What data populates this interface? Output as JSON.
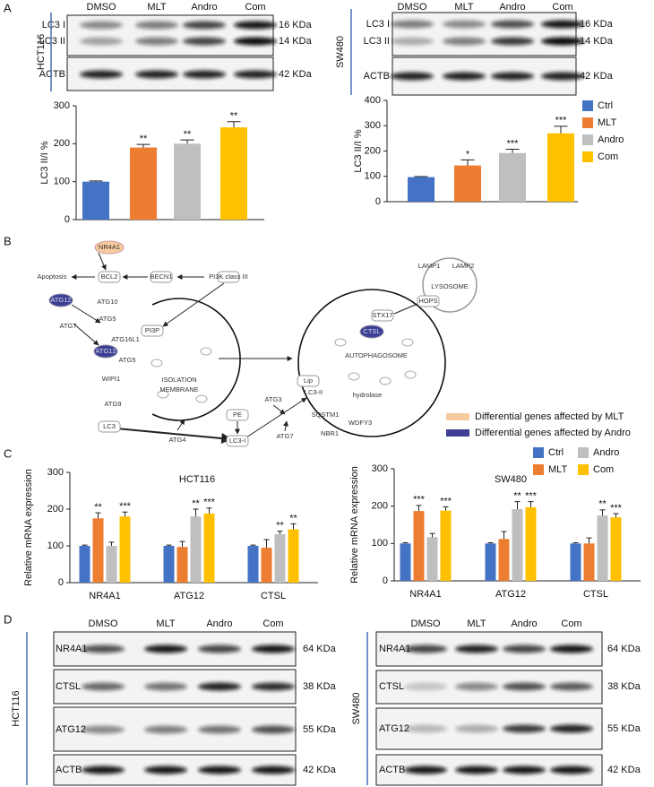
{
  "panels": [
    "A",
    "B",
    "C",
    "D"
  ],
  "blots": [
    {
      "cell_line": "HCT116",
      "lanes": [
        "DMSO",
        "MLT",
        "Andro",
        "Com"
      ],
      "bands": [
        {
          "name": "LC3 I",
          "size": "16 KDa"
        },
        {
          "name": "LC3 II",
          "size": "14 KDa"
        },
        {
          "name": "ACTB",
          "size": "42 KDa"
        }
      ]
    },
    {
      "cell_line": "SW480",
      "lanes": [
        "DMSO",
        "MLT",
        "Andro",
        "Com"
      ],
      "bands": [
        {
          "name": "LC3 I",
          "size": "16 KDa"
        },
        {
          "name": "LC3 II",
          "size": "14 KDa"
        },
        {
          "name": "ACTB",
          "size": "42 KDa"
        }
      ]
    },
    {
      "cell_line": "HCT116",
      "lanes": [
        "DMSO",
        "MLT",
        "Andro",
        "Com"
      ],
      "bands": [
        {
          "name": "NR4A1",
          "size": "64 KDa"
        },
        {
          "name": "CTSL",
          "size": "38 KDa"
        },
        {
          "name": "ATG12",
          "size": "55 KDa"
        },
        {
          "name": "ACTB",
          "size": "42 KDa"
        }
      ]
    },
    {
      "cell_line": "SW480",
      "lanes": [
        "DMSO",
        "MLT",
        "Andro",
        "Com"
      ],
      "bands": [
        {
          "name": "NR4A1",
          "size": "64 KDa"
        },
        {
          "name": "CTSL",
          "size": "38 KDa"
        },
        {
          "name": "ATG12",
          "size": "55 KDa"
        },
        {
          "name": "ACTB",
          "size": "42 KDa"
        }
      ]
    }
  ],
  "chart_data": [
    {
      "type": "bar",
      "ylabel": "LC3 II/I %",
      "values": [
        100,
        190,
        200,
        243
      ],
      "errors": [
        2,
        8,
        10,
        15
      ],
      "annotations": [
        null,
        "**",
        "**",
        "**"
      ],
      "colors": [
        "#4472c4",
        "#ed7d31",
        "#bfbfbf",
        "#ffc000"
      ],
      "ylim": [
        0,
        300
      ],
      "yticks": [
        0,
        100,
        200,
        300
      ]
    },
    {
      "type": "bar",
      "ylabel": "LC3 II/I %",
      "categories": [
        "Ctrl",
        "MLT",
        "Andro",
        "Com"
      ],
      "values": [
        97,
        143,
        192,
        270
      ],
      "errors": [
        2,
        22,
        15,
        28
      ],
      "annotations": [
        null,
        "*",
        "***",
        "***"
      ],
      "colors": [
        "#4472c4",
        "#ed7d31",
        "#bfbfbf",
        "#ffc000"
      ],
      "ylim": [
        0,
        400
      ],
      "yticks": [
        0,
        100,
        200,
        300,
        400
      ],
      "legend": "right"
    },
    {
      "type": "grouped_bar",
      "title": "HCT116",
      "ylabel": "Relative mRNA expression",
      "categories": [
        "NR4A1",
        "ATG12",
        "CTSL"
      ],
      "series": [
        {
          "color": "#4472c4",
          "values": [
            100,
            100,
            100
          ],
          "errors": [
            2,
            2,
            2
          ],
          "annotations": [
            null,
            null,
            null
          ]
        },
        {
          "color": "#ed7d31",
          "values": [
            175,
            97,
            95
          ],
          "errors": [
            15,
            15,
            22
          ],
          "annotations": [
            "**",
            null,
            null
          ]
        },
        {
          "color": "#bfbfbf",
          "values": [
            100,
            180,
            132
          ],
          "errors": [
            10,
            20,
            8
          ],
          "annotations": [
            null,
            "**",
            "**"
          ]
        },
        {
          "color": "#ffc000",
          "values": [
            180,
            188,
            145
          ],
          "errors": [
            12,
            15,
            15
          ],
          "annotations": [
            "***",
            "***",
            "**"
          ]
        }
      ],
      "ylim": [
        0,
        300
      ],
      "yticks": [
        0,
        100,
        200,
        300
      ]
    },
    {
      "type": "grouped_bar",
      "title": "SW480",
      "ylabel": "Relative mRNA expression",
      "categories": [
        "NR4A1",
        "ATG12",
        "CTSL"
      ],
      "series": [
        {
          "name": "Ctrl",
          "color": "#4472c4",
          "values": [
            100,
            100,
            100
          ],
          "errors": [
            2,
            2,
            2
          ],
          "annotations": [
            null,
            null,
            null
          ]
        },
        {
          "name": "MLT",
          "color": "#ed7d31",
          "values": [
            187,
            112,
            100
          ],
          "errors": [
            15,
            20,
            15
          ],
          "annotations": [
            "***",
            null,
            null
          ]
        },
        {
          "name": "Andro",
          "color": "#bfbfbf",
          "values": [
            117,
            192,
            175
          ],
          "errors": [
            10,
            20,
            15
          ],
          "annotations": [
            null,
            "**",
            "**"
          ]
        },
        {
          "name": "Com",
          "color": "#ffc000",
          "values": [
            188,
            197,
            170
          ],
          "errors": [
            10,
            15,
            10
          ],
          "annotations": [
            "***",
            "***",
            "***"
          ]
        }
      ],
      "ylim": [
        0,
        300
      ],
      "yticks": [
        0,
        100,
        200,
        300
      ],
      "legend": "top right"
    }
  ],
  "pathway": {
    "nodes": [
      "NR4A1",
      "Apoptosis",
      "BCL2",
      "BECN1",
      "PI3K class III",
      "ATG12",
      "ATG10",
      "ATG5",
      "ATG7",
      "PI3P",
      "ATG16L1",
      "ATG12",
      "ATG5",
      "WIPI1",
      "ISOLATION",
      "MEMBRANE",
      "ATG9",
      "LC3",
      "ATG4",
      "PE",
      "LC3-I",
      "ATG3",
      "ATG7",
      "Lip",
      "LC3-II",
      "hydrolase",
      "SQSTM1",
      "WDFY3",
      "NBR1",
      "AUTOPHAGOSOME",
      "CTSL",
      "STX17",
      "HOPS",
      "LYSOSOME",
      "LAMP1",
      "LAMP2"
    ],
    "legend": [
      {
        "label": "Differential genes affected by MLT",
        "color": "#f7caa0"
      },
      {
        "label": "Differential genes affected by Andro",
        "color": "#3c3f94"
      }
    ]
  }
}
